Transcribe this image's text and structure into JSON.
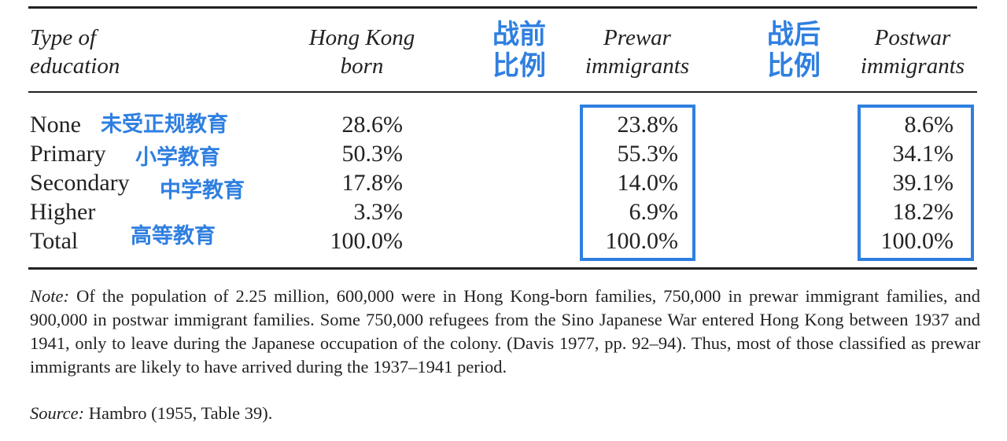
{
  "table": {
    "headers": {
      "type": [
        "Type of",
        "education"
      ],
      "hk_born": [
        "Hong Kong",
        "born"
      ],
      "prewar": [
        "Prewar",
        "immigrants"
      ],
      "postwar": [
        "Postwar",
        "immigrants"
      ]
    },
    "rows": [
      {
        "label": "None",
        "hk": "28.6%",
        "prewar": "23.8%",
        "postwar": "8.6%"
      },
      {
        "label": "Primary",
        "hk": "50.3%",
        "prewar": "55.3%",
        "postwar": "34.1%"
      },
      {
        "label": "Secondary",
        "hk": "17.8%",
        "prewar": "14.0%",
        "postwar": "39.1%"
      },
      {
        "label": "Higher",
        "hk": "3.3%",
        "prewar": "6.9%",
        "postwar": "18.2%"
      },
      {
        "label": "Total",
        "hk": "100.0%",
        "prewar": "100.0%",
        "postwar": "100.0%"
      }
    ]
  },
  "annotations": {
    "prewar_ratio": [
      "战前",
      "比例"
    ],
    "postwar_ratio": [
      "战后",
      "比例"
    ],
    "none": "未受正规教育",
    "primary": "小学教育",
    "secondary": "中学教育",
    "higher": "高等教育",
    "color": "#2f7fe0"
  },
  "note": {
    "label": "Note:",
    "text": "Of the population of 2.25 million, 600,000 were in Hong Kong-born families, 750,000 in prewar immigrant families, and 900,000 in postwar immigrant families. Some 750,000 refugees from the Sino Japanese War entered Hong Kong between 1937 and 1941, only to leave during the Japanese occupation of the colony. (Davis 1977, pp. 92–94). Thus, most of those classified as prewar immigrants are likely to have arrived during the 1937–1941 period."
  },
  "source": {
    "label": "Source:",
    "text": "Hambro (1955, Table 39)."
  }
}
